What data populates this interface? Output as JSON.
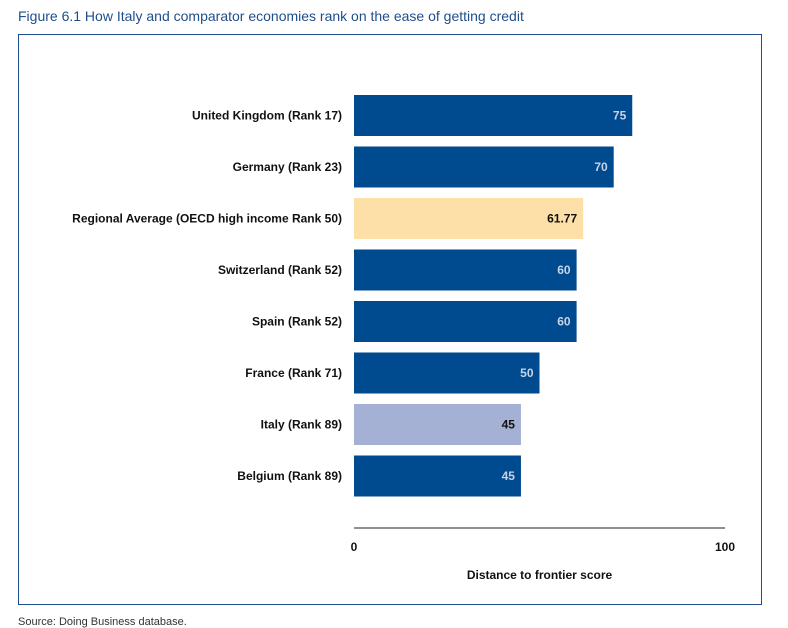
{
  "figure_title": "Figure 6.1 How Italy and comparator economies rank on the ease of getting credit",
  "source_note": "Source: Doing Business database.",
  "colors": {
    "frame": "#1f4e8c",
    "title": "#1f4e8c",
    "bar_default": "#004a8f",
    "bar_regional": "#fde0a8",
    "bar_focus": "#a5b1d4",
    "label_on_dark": "#c9d3e6",
    "label_on_light": "#111111"
  },
  "chart_data": {
    "type": "bar",
    "orientation": "horizontal",
    "categories": [
      "United Kingdom (Rank 17)",
      "Germany (Rank 23)",
      "Regional Average (OECD high income Rank 50)",
      "Switzerland (Rank 52)",
      "Spain (Rank 52)",
      "France (Rank 71)",
      "Italy (Rank 89)",
      "Belgium (Rank 89)"
    ],
    "values": [
      75,
      70,
      61.77,
      60,
      60,
      50,
      45,
      45
    ],
    "value_labels": [
      "75",
      "70",
      "61.77",
      "60",
      "60",
      "50",
      "45",
      "45"
    ],
    "bar_styles": [
      "default",
      "default",
      "regional",
      "default",
      "default",
      "default",
      "focus",
      "default"
    ],
    "xlabel": "Distance to frontier score",
    "ylabel": "",
    "xlim": [
      0,
      100
    ],
    "x_ticks": [
      "0",
      "100"
    ],
    "grid": false,
    "legend": "none"
  }
}
